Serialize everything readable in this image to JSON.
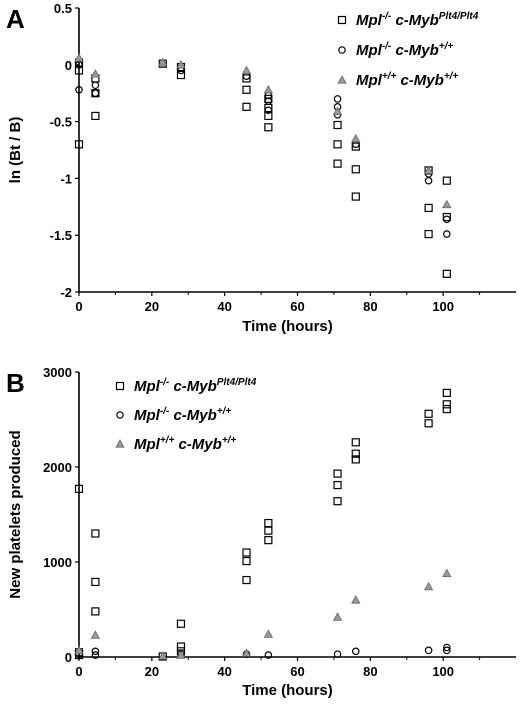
{
  "chart_data": [
    {
      "type": "scatter",
      "panel_label": "A",
      "title": "",
      "xlabel": "Time (hours)",
      "ylabel": "ln (Bt / B)",
      "xlim": [
        0,
        120
      ],
      "ylim": [
        -2,
        0.5
      ],
      "xticks": [
        "0",
        "20",
        "40",
        "60",
        "80",
        "100"
      ],
      "yticks": [
        "0.5",
        "0",
        "-0.5",
        "-1",
        "-1.5",
        "-2"
      ],
      "legend_position": "top-right",
      "series": [
        {
          "name": [
            "Mpl",
            "-/-",
            " c-Myb",
            "Plt4/Plt4"
          ],
          "marker": "square",
          "points": [
            [
              0,
              0.02
            ],
            [
              0,
              -0.05
            ],
            [
              0,
              -0.7
            ],
            [
              4.5,
              -0.12
            ],
            [
              4.5,
              -0.25
            ],
            [
              4.5,
              -0.45
            ],
            [
              23,
              0.01
            ],
            [
              28,
              -0.02
            ],
            [
              28,
              -0.09
            ],
            [
              46,
              -0.12
            ],
            [
              46,
              -0.22
            ],
            [
              46,
              -0.37
            ],
            [
              52,
              -0.3
            ],
            [
              52,
              -0.38
            ],
            [
              52,
              -0.45
            ],
            [
              52,
              -0.55
            ],
            [
              71,
              -0.53
            ],
            [
              71,
              -0.7
            ],
            [
              71,
              -0.87
            ],
            [
              76,
              -0.72
            ],
            [
              76,
              -0.92
            ],
            [
              76,
              -1.16
            ],
            [
              96,
              -0.93
            ],
            [
              96,
              -1.26
            ],
            [
              96,
              -1.49
            ],
            [
              101,
              -1.02
            ],
            [
              101,
              -1.34
            ],
            [
              101,
              -1.84
            ]
          ]
        },
        {
          "name": [
            "Mpl",
            "-/-",
            " c-Myb",
            "+/+"
          ],
          "marker": "circle",
          "points": [
            [
              0,
              0
            ],
            [
              0,
              -0.22
            ],
            [
              4.5,
              -0.18
            ],
            [
              4.5,
              -0.25
            ],
            [
              28,
              -0.05
            ],
            [
              46,
              -0.1
            ],
            [
              52,
              -0.27
            ],
            [
              52,
              -0.32
            ],
            [
              52,
              -0.4
            ],
            [
              71,
              -0.3
            ],
            [
              71,
              -0.37
            ],
            [
              71,
              -0.44
            ],
            [
              76,
              -0.7
            ],
            [
              96,
              -0.96
            ],
            [
              96,
              -1.02
            ],
            [
              101,
              -1.36
            ],
            [
              101,
              -1.49
            ]
          ]
        },
        {
          "name": [
            "Mpl",
            "+/+",
            " c-Myb",
            "+/+"
          ],
          "marker": "triangle",
          "points": [
            [
              0,
              0.06
            ],
            [
              4.5,
              -0.08
            ],
            [
              23,
              0.02
            ],
            [
              28,
              0.0
            ],
            [
              46,
              -0.05
            ],
            [
              52,
              -0.22
            ],
            [
              71,
              -0.41
            ],
            [
              76,
              -0.65
            ],
            [
              96,
              -0.93
            ],
            [
              101,
              -1.23
            ]
          ]
        }
      ]
    },
    {
      "type": "scatter",
      "panel_label": "B",
      "title": "",
      "xlabel": "Time (hours)",
      "ylabel": "New platelets produced",
      "xlim": [
        0,
        120
      ],
      "ylim": [
        0,
        3000
      ],
      "xticks": [
        "0",
        "20",
        "40",
        "60",
        "80",
        "100"
      ],
      "yticks": [
        "3000",
        "2000",
        "1000",
        "0"
      ],
      "legend_position": "top-left",
      "series": [
        {
          "name": [
            "Mpl",
            "-/-",
            " c-Myb",
            "Plt4/Plt4"
          ],
          "marker": "square",
          "points": [
            [
              0,
              1770
            ],
            [
              0,
              50
            ],
            [
              0,
              20
            ],
            [
              4.5,
              1300
            ],
            [
              4.5,
              790
            ],
            [
              4.5,
              480
            ],
            [
              23,
              5
            ],
            [
              28,
              350
            ],
            [
              28,
              110
            ],
            [
              28,
              60
            ],
            [
              46,
              1100
            ],
            [
              46,
              1010
            ],
            [
              46,
              810
            ],
            [
              52,
              1410
            ],
            [
              52,
              1330
            ],
            [
              52,
              1230
            ],
            [
              71,
              1930
            ],
            [
              71,
              1810
            ],
            [
              71,
              1640
            ],
            [
              76,
              2260
            ],
            [
              76,
              2140
            ],
            [
              76,
              2080
            ],
            [
              96,
              2560
            ],
            [
              96,
              2460
            ],
            [
              101,
              2780
            ],
            [
              101,
              2660
            ],
            [
              101,
              2610
            ]
          ]
        },
        {
          "name": [
            "Mpl",
            "-/-",
            " c-Myb",
            "+/+"
          ],
          "marker": "circle",
          "points": [
            [
              0,
              30
            ],
            [
              4.5,
              60
            ],
            [
              4.5,
              20
            ],
            [
              28,
              30
            ],
            [
              46,
              30
            ],
            [
              52,
              20
            ],
            [
              71,
              30
            ],
            [
              76,
              60
            ],
            [
              96,
              70
            ],
            [
              101,
              100
            ],
            [
              101,
              70
            ]
          ]
        },
        {
          "name": [
            "Mpl",
            "+/+",
            " c-Myb",
            "+/+"
          ],
          "marker": "triangle",
          "points": [
            [
              0,
              70
            ],
            [
              4.5,
              230
            ],
            [
              23,
              10
            ],
            [
              28,
              20
            ],
            [
              46,
              40
            ],
            [
              52,
              240
            ],
            [
              71,
              420
            ],
            [
              76,
              600
            ],
            [
              96,
              740
            ],
            [
              101,
              880
            ]
          ]
        }
      ]
    }
  ]
}
